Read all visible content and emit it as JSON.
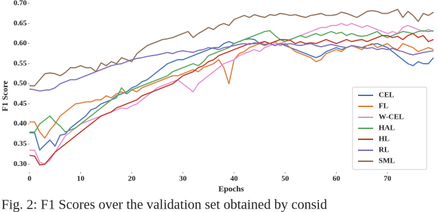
{
  "chart_data": {
    "type": "line",
    "caption": "Fig. 2: F1 Scores over the validation set obtained by consid",
    "xlabel": "Epochs",
    "ylabel": "F1 Score",
    "x": [
      0,
      1,
      2,
      3,
      4,
      5,
      6,
      7,
      8,
      9,
      10,
      11,
      12,
      13,
      14,
      15,
      16,
      17,
      18,
      19,
      20,
      21,
      22,
      23,
      24,
      25,
      26,
      27,
      28,
      29,
      30,
      31,
      32,
      33,
      34,
      35,
      36,
      37,
      38,
      39,
      40,
      41,
      42,
      43,
      44,
      45,
      46,
      47,
      48,
      49,
      50,
      51,
      52,
      53,
      54,
      55,
      56,
      57,
      58,
      59,
      60,
      61,
      62,
      63,
      64,
      65,
      66,
      67,
      68,
      69,
      70,
      71,
      72,
      73,
      74,
      75,
      76,
      77,
      78,
      79
    ],
    "xlim": [
      0,
      79
    ],
    "xticks": [
      0,
      10,
      20,
      30,
      40,
      50,
      60,
      70
    ],
    "ylim": [
      0.28,
      0.705
    ],
    "yticks": [
      {
        "value": 0.3,
        "label": "0.30"
      },
      {
        "value": 0.35,
        "label": "0.35"
      },
      {
        "value": 0.4,
        "label": "0.40"
      },
      {
        "value": 0.45,
        "label": "0.45"
      },
      {
        "value": 0.5,
        "label": "0.50"
      },
      {
        "value": 0.55,
        "label": "0.55"
      },
      {
        "value": 0.6,
        "label": "0.60"
      },
      {
        "value": 0.65,
        "label": "0.65"
      },
      {
        "value": 0.7,
        "label": "0.70"
      }
    ],
    "legend": "lower right",
    "series": [
      {
        "name": "CEL",
        "color": "#4a72b8",
        "values": [
          0.378,
          0.378,
          0.335,
          0.348,
          0.36,
          0.345,
          0.372,
          0.375,
          0.39,
          0.4,
          0.41,
          0.42,
          0.435,
          0.44,
          0.45,
          0.455,
          0.46,
          0.47,
          0.475,
          0.48,
          0.49,
          0.495,
          0.505,
          0.51,
          0.52,
          0.53,
          0.54,
          0.55,
          0.555,
          0.56,
          0.56,
          0.565,
          0.57,
          0.575,
          0.58,
          0.585,
          0.59,
          0.59,
          0.6,
          0.605,
          0.6,
          0.605,
          0.61,
          0.612,
          0.61,
          0.6,
          0.605,
          0.6,
          0.595,
          0.6,
          0.595,
          0.59,
          0.585,
          0.58,
          0.575,
          0.57,
          0.565,
          0.57,
          0.58,
          0.585,
          0.59,
          0.585,
          0.59,
          0.595,
          0.592,
          0.59,
          0.595,
          0.598,
          0.6,
          0.595,
          0.59,
          0.58,
          0.57,
          0.56,
          0.55,
          0.545,
          0.555,
          0.55,
          0.55,
          0.565
        ]
      },
      {
        "name": "FL",
        "color": "#e07b39",
        "values": [
          0.405,
          0.405,
          0.38,
          0.365,
          0.385,
          0.4,
          0.42,
          0.43,
          0.44,
          0.45,
          0.452,
          0.455,
          0.455,
          0.46,
          0.46,
          0.47,
          0.465,
          0.475,
          0.48,
          0.475,
          0.485,
          0.48,
          0.49,
          0.495,
          0.5,
          0.505,
          0.51,
          0.515,
          0.52,
          0.52,
          0.525,
          0.53,
          0.535,
          0.53,
          0.54,
          0.545,
          0.55,
          0.56,
          0.54,
          0.5,
          0.56,
          0.575,
          0.58,
          0.59,
          0.595,
          0.6,
          0.595,
          0.6,
          0.605,
          0.595,
          0.6,
          0.59,
          0.58,
          0.575,
          0.57,
          0.565,
          0.555,
          0.56,
          0.575,
          0.58,
          0.585,
          0.58,
          0.59,
          0.595,
          0.59,
          0.585,
          0.595,
          0.6,
          0.59,
          0.595,
          0.6,
          0.59,
          0.585,
          0.6,
          0.595,
          0.59,
          0.58,
          0.585,
          0.59,
          0.585
        ]
      },
      {
        "name": "W-CEL",
        "color": "#e58fd4",
        "values": [
          0.335,
          0.335,
          0.305,
          0.3,
          0.31,
          0.33,
          0.35,
          0.37,
          0.38,
          0.39,
          0.4,
          0.405,
          0.41,
          0.415,
          0.42,
          0.425,
          0.43,
          0.435,
          0.44,
          0.438,
          0.445,
          0.45,
          0.46,
          0.47,
          0.48,
          0.49,
          0.495,
          0.5,
          0.505,
          0.51,
          0.5,
          0.49,
          0.48,
          0.5,
          0.51,
          0.52,
          0.53,
          0.54,
          0.55,
          0.555,
          0.56,
          0.57,
          0.575,
          0.58,
          0.585,
          0.58,
          0.59,
          0.595,
          0.6,
          0.6,
          0.605,
          0.61,
          0.615,
          0.62,
          0.625,
          0.63,
          0.635,
          0.64,
          0.64,
          0.645,
          0.645,
          0.65,
          0.645,
          0.65,
          0.645,
          0.64,
          0.645,
          0.64,
          0.635,
          0.63,
          0.625,
          0.63,
          0.625,
          0.64,
          0.645,
          0.64,
          0.635,
          0.63,
          0.635,
          0.63
        ]
      },
      {
        "name": "HAL",
        "color": "#55a85a",
        "values": [
          0.38,
          0.38,
          0.4,
          0.41,
          0.42,
          0.405,
          0.395,
          0.38,
          0.385,
          0.39,
          0.4,
          0.41,
          0.42,
          0.43,
          0.44,
          0.45,
          0.46,
          0.465,
          0.49,
          0.475,
          0.485,
          0.49,
          0.495,
          0.5,
          0.505,
          0.51,
          0.515,
          0.52,
          0.53,
          0.535,
          0.54,
          0.545,
          0.55,
          0.545,
          0.555,
          0.57,
          0.575,
          0.58,
          0.585,
          0.59,
          0.6,
          0.605,
          0.61,
          0.615,
          0.62,
          0.625,
          0.63,
          0.632,
          0.62,
          0.61,
          0.605,
          0.61,
          0.615,
          0.62,
          0.615,
          0.62,
          0.625,
          0.62,
          0.625,
          0.63,
          0.625,
          0.628,
          0.62,
          0.625,
          0.62,
          0.618,
          0.62,
          0.625,
          0.63,
          0.62,
          0.615,
          0.62,
          0.625,
          0.63,
          0.628,
          0.625,
          0.63,
          0.632,
          0.63,
          0.632
        ]
      },
      {
        "name": "HL",
        "color": "#c0392b",
        "values": [
          0.322,
          0.32,
          0.298,
          0.3,
          0.315,
          0.33,
          0.34,
          0.35,
          0.36,
          0.37,
          0.38,
          0.39,
          0.4,
          0.41,
          0.42,
          0.425,
          0.43,
          0.44,
          0.445,
          0.45,
          0.455,
          0.46,
          0.47,
          0.475,
          0.48,
          0.485,
          0.49,
          0.495,
          0.5,
          0.51,
          0.52,
          0.525,
          0.53,
          0.54,
          0.545,
          0.555,
          0.56,
          0.57,
          0.575,
          0.58,
          0.585,
          0.59,
          0.595,
          0.6,
          0.6,
          0.602,
          0.605,
          0.6,
          0.605,
          0.61,
          0.61,
          0.608,
          0.6,
          0.605,
          0.6,
          0.602,
          0.6,
          0.605,
          0.61,
          0.605,
          0.6,
          0.605,
          0.61,
          0.605,
          0.608,
          0.61,
          0.605,
          0.61,
          0.615,
          0.62,
          0.62,
          0.615,
          0.618,
          0.61,
          0.62,
          0.625,
          0.615,
          0.62,
          0.605,
          0.61
        ]
      },
      {
        "name": "RL",
        "color": "#7b6fb8",
        "values": [
          0.487,
          0.485,
          0.482,
          0.484,
          0.485,
          0.49,
          0.5,
          0.505,
          0.51,
          0.51,
          0.515,
          0.52,
          0.525,
          0.53,
          0.535,
          0.54,
          0.545,
          0.548,
          0.55,
          0.555,
          0.56,
          0.563,
          0.565,
          0.568,
          0.57,
          0.572,
          0.575,
          0.578,
          0.575,
          0.58,
          0.582,
          0.58,
          0.578,
          0.583,
          0.585,
          0.59,
          0.588,
          0.585,
          0.59,
          0.592,
          0.595,
          0.598,
          0.6,
          0.598,
          0.602,
          0.6,
          0.598,
          0.6,
          0.595,
          0.6,
          0.598,
          0.6,
          0.597,
          0.595,
          0.598,
          0.6,
          0.595,
          0.592,
          0.595,
          0.598,
          0.595,
          0.592,
          0.59,
          0.595,
          0.593,
          0.59,
          0.588,
          0.59,
          0.585,
          0.588,
          0.585,
          0.588,
          0.583,
          0.58,
          0.575,
          0.572,
          0.575,
          0.578,
          0.58,
          0.582
        ]
      },
      {
        "name": "SML",
        "color": "#8c6d55",
        "values": [
          0.495,
          0.495,
          0.51,
          0.525,
          0.527,
          0.525,
          0.52,
          0.528,
          0.54,
          0.54,
          0.545,
          0.54,
          0.54,
          0.53,
          0.552,
          0.545,
          0.555,
          0.55,
          0.565,
          0.56,
          0.555,
          0.575,
          0.585,
          0.595,
          0.6,
          0.605,
          0.61,
          0.612,
          0.615,
          0.62,
          0.625,
          0.63,
          0.615,
          0.625,
          0.632,
          0.64,
          0.635,
          0.645,
          0.65,
          0.645,
          0.66,
          0.665,
          0.67,
          0.665,
          0.672,
          0.668,
          0.665,
          0.672,
          0.67,
          0.675,
          0.673,
          0.67,
          0.672,
          0.668,
          0.665,
          0.67,
          0.672,
          0.675,
          0.67,
          0.67,
          0.672,
          0.678,
          0.675,
          0.67,
          0.665,
          0.672,
          0.68,
          0.682,
          0.68,
          0.675,
          0.675,
          0.68,
          0.685,
          0.665,
          0.68,
          0.67,
          0.655,
          0.675,
          0.67,
          0.678
        ]
      }
    ]
  }
}
